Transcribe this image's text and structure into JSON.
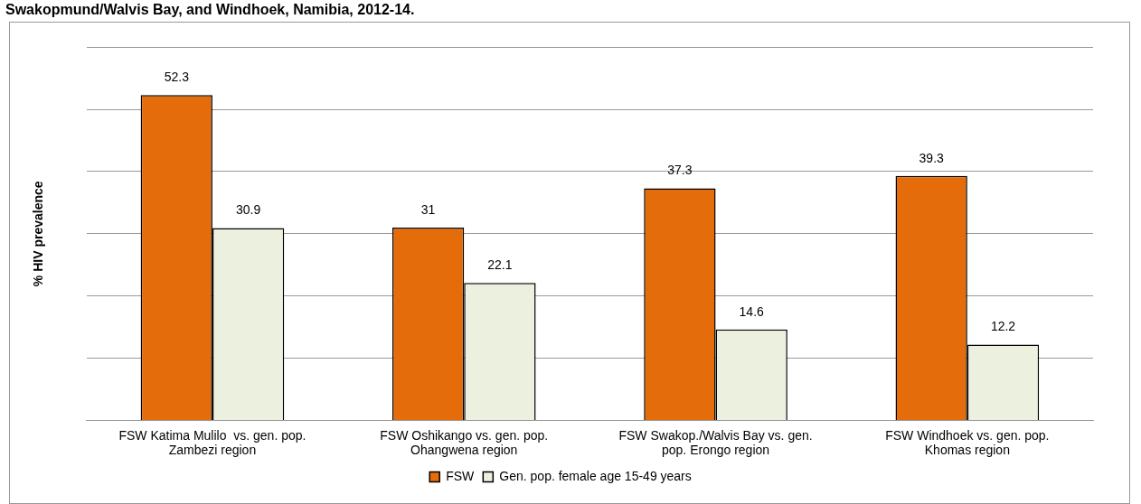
{
  "chart_data": {
    "type": "bar",
    "title": "Swakopmund/Walvis Bay, and Windhoek, Namibia, 2012-14.",
    "ylabel": "% HIV prevalence",
    "categories": [
      "FSW Katima Mulilo  vs. gen. pop. Zambezi region",
      "FSW Oshikango vs. gen. pop. Ohangwena region",
      "FSW Swakop./Walvis Bay vs. gen. pop. Erongo region",
      "FSW Windhoek vs. gen. pop. Khomas region"
    ],
    "series": [
      {
        "name": "FSW",
        "color": "#e46c0a",
        "values": [
          52.3,
          31,
          37.3,
          39.3
        ]
      },
      {
        "name": "Gen. pop. female age 15-49 years",
        "color": "#ebf1de",
        "values": [
          30.9,
          22.1,
          14.6,
          12.2
        ]
      }
    ],
    "grid": "y",
    "legend": "bottom",
    "data_labels": true
  }
}
